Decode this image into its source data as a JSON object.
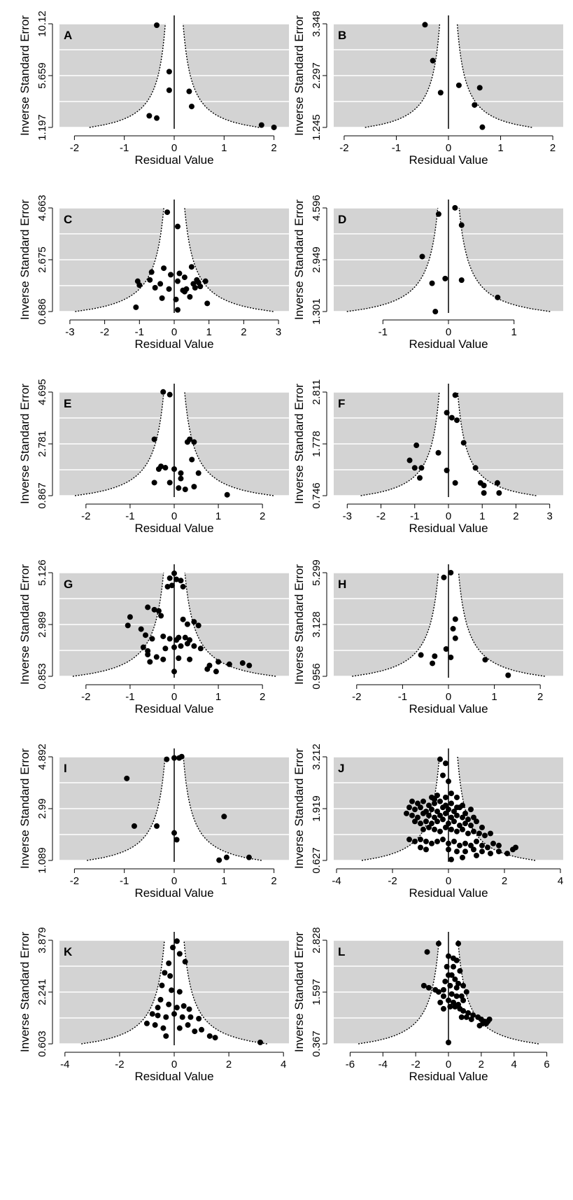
{
  "chart_data": [
    {
      "type": "scatter",
      "panel": "A",
      "xlabel": "Residual Value",
      "ylabel": "Inverse Standard Error",
      "xlim": [
        -2.3,
        2.3
      ],
      "xticks": [
        -2,
        -1,
        0,
        1,
        2
      ],
      "ylim": [
        1.197,
        10.12
      ],
      "yticks": [
        1.197,
        5.659,
        10.12
      ],
      "ytick_labels": [
        "1.197",
        "5.659",
        "10.12"
      ],
      "funnel_halfwidth_at_ymin": 1.7,
      "x": [
        -0.35,
        -0.1,
        -0.1,
        0.3,
        0.35,
        -0.5,
        -0.35,
        1.75,
        2.0
      ],
      "y": [
        10.0,
        6.0,
        4.4,
        4.3,
        3.0,
        2.2,
        2.0,
        1.4,
        1.2
      ]
    },
    {
      "type": "scatter",
      "panel": "B",
      "xlabel": "Residual Value",
      "ylabel": "Inverse Standard Error",
      "xlim": [
        -2.2,
        2.2
      ],
      "xticks": [
        -2,
        -1,
        0,
        1,
        2
      ],
      "ylim": [
        1.245,
        3.348
      ],
      "yticks": [
        1.245,
        2.297,
        3.348
      ],
      "ytick_labels": [
        "1.245",
        "2.297",
        "3.348"
      ],
      "funnel_halfwidth_at_ymin": 1.6,
      "x": [
        -0.45,
        -0.3,
        -0.15,
        0.2,
        0.5,
        0.6,
        0.65
      ],
      "y": [
        3.33,
        2.6,
        1.95,
        2.1,
        1.7,
        2.05,
        1.25
      ]
    },
    {
      "type": "scatter",
      "panel": "C",
      "xlabel": "Residual Value",
      "ylabel": "Inverse Standard Error",
      "xlim": [
        -3.3,
        3.3
      ],
      "xticks": [
        -3,
        -2,
        -1,
        0,
        1,
        2,
        3
      ],
      "ylim": [
        0.686,
        4.663
      ],
      "yticks": [
        0.686,
        2.675,
        4.663
      ],
      "ytick_labels": [
        "0.686",
        "2.675",
        "4.663"
      ],
      "funnel_halfwidth_at_ymin": 2.85,
      "x": [
        -0.2,
        0.1,
        -0.65,
        -0.3,
        0.15,
        0.5,
        0.3,
        -0.1,
        -1.05,
        -1.0,
        -0.7,
        -0.55,
        -0.4,
        -0.15,
        0.1,
        0.35,
        0.55,
        0.65,
        0.75,
        0.9,
        0.25,
        0.45,
        0.6,
        -0.35,
        0.05,
        0.3,
        0.7,
        0.95,
        -1.1,
        0.1
      ],
      "y": [
        4.5,
        3.95,
        2.2,
        2.35,
        2.15,
        2.4,
        2.0,
        2.1,
        1.85,
        1.7,
        1.9,
        1.6,
        1.75,
        1.55,
        1.85,
        1.55,
        1.75,
        1.9,
        1.65,
        1.85,
        1.5,
        1.25,
        1.6,
        1.2,
        1.15,
        1.45,
        1.8,
        1.0,
        0.85,
        0.75
      ]
    },
    {
      "type": "scatter",
      "panel": "D",
      "xlabel": "Residual Value",
      "ylabel": "Inverse Standard Error",
      "xlim": [
        -1.75,
        1.75
      ],
      "xticks": [
        -1,
        0,
        1
      ],
      "ylim": [
        1.301,
        4.596
      ],
      "yticks": [
        1.301,
        2.949,
        4.596
      ],
      "ytick_labels": [
        "1.301",
        "2.949",
        "4.596"
      ],
      "funnel_halfwidth_at_ymin": 1.55,
      "x": [
        -0.15,
        0.1,
        0.2,
        -0.4,
        -0.25,
        -0.05,
        0.2,
        0.75,
        -0.2
      ],
      "y": [
        4.4,
        4.6,
        4.05,
        3.05,
        2.2,
        2.35,
        2.3,
        1.75,
        1.3
      ]
    },
    {
      "type": "scatter",
      "panel": "E",
      "xlabel": "Residual Value",
      "ylabel": "Inverse Standard Error",
      "xlim": [
        -2.6,
        2.6
      ],
      "xticks": [
        -2,
        -1,
        0,
        1,
        2
      ],
      "ylim": [
        0.867,
        4.695
      ],
      "yticks": [
        0.867,
        2.781,
        4.695
      ],
      "ytick_labels": [
        "0.867",
        "2.781",
        "4.695"
      ],
      "funnel_halfwidth_at_ymin": 2.25,
      "x": [
        -0.25,
        -0.1,
        -0.45,
        0.3,
        0.45,
        0.35,
        0.4,
        -0.3,
        -0.2,
        -0.35,
        0.0,
        0.15,
        0.55,
        -0.45,
        -0.1,
        0.1,
        0.25,
        0.45,
        1.2,
        0.15
      ],
      "y": [
        4.7,
        4.6,
        2.95,
        2.85,
        2.85,
        2.95,
        2.2,
        1.95,
        1.9,
        1.85,
        1.85,
        1.7,
        1.7,
        1.35,
        1.35,
        1.15,
        1.1,
        1.2,
        0.9,
        1.5
      ]
    },
    {
      "type": "scatter",
      "panel": "F",
      "xlabel": "Residual Value",
      "ylabel": "Inverse Standard Error",
      "xlim": [
        -3.4,
        3.4
      ],
      "xticks": [
        -3,
        -2,
        -1,
        0,
        1,
        2,
        3
      ],
      "ylim": [
        0.746,
        2.811
      ],
      "yticks": [
        0.746,
        1.778,
        2.811
      ],
      "ytick_labels": [
        "0.746",
        "1.778",
        "2.811"
      ],
      "funnel_halfwidth_at_ymin": 2.6,
      "x": [
        0.2,
        -0.05,
        0.1,
        0.25,
        -0.95,
        0.45,
        -0.3,
        -1.15,
        -1.0,
        -0.8,
        -0.05,
        0.8,
        1.45,
        -0.85,
        0.2,
        0.95,
        1.05,
        1.5,
        1.05
      ],
      "y": [
        2.75,
        2.4,
        2.3,
        2.25,
        1.75,
        1.8,
        1.6,
        1.45,
        1.3,
        1.3,
        1.25,
        1.3,
        1.0,
        1.1,
        1.0,
        1.0,
        0.95,
        0.8,
        0.8
      ]
    },
    {
      "type": "scatter",
      "panel": "G",
      "xlabel": "Residual Value",
      "ylabel": "Inverse Standard Error",
      "xlim": [
        -2.6,
        2.6
      ],
      "xticks": [
        -2,
        -1,
        0,
        1,
        2
      ],
      "ylim": [
        0.853,
        5.126
      ],
      "yticks": [
        0.853,
        2.989,
        5.126
      ],
      "ytick_labels": [
        "0.853",
        "2.989",
        "5.126"
      ],
      "funnel_halfwidth_at_ymin": 2.3,
      "x": [
        0.0,
        -0.1,
        0.05,
        0.15,
        -0.05,
        0.2,
        -0.15,
        -0.6,
        -0.45,
        -0.35,
        -1.0,
        -1.05,
        -0.75,
        -0.3,
        0.45,
        0.55,
        0.2,
        0.3,
        -0.65,
        -0.5,
        -0.25,
        -0.1,
        0.05,
        0.1,
        0.25,
        0.35,
        -0.7,
        -0.6,
        -0.2,
        0.0,
        0.15,
        0.45,
        0.6,
        -0.4,
        -0.25,
        0.1,
        0.35,
        0.8,
        1.0,
        1.25,
        1.55,
        1.7,
        -0.6,
        -0.55,
        0.75,
        0.95,
        0.0,
        0.3
      ],
      "y": [
        5.1,
        4.9,
        4.85,
        4.8,
        4.6,
        4.55,
        4.55,
        3.7,
        3.6,
        3.55,
        3.3,
        2.95,
        2.8,
        3.35,
        3.1,
        2.95,
        3.2,
        3.0,
        2.55,
        2.4,
        2.5,
        2.4,
        2.35,
        2.45,
        2.45,
        2.35,
        2.05,
        1.9,
        2.0,
        2.05,
        2.1,
        2.1,
        2.0,
        1.65,
        1.55,
        1.6,
        1.55,
        1.3,
        1.45,
        1.35,
        1.4,
        1.3,
        1.75,
        1.45,
        1.15,
        1.05,
        1.05,
        2.2
      ]
    },
    {
      "type": "scatter",
      "panel": "H",
      "xlabel": "Residual Value",
      "ylabel": "Inverse Standard Error",
      "xlim": [
        -2.5,
        2.5
      ],
      "xticks": [
        -2,
        -1,
        0,
        1,
        2
      ],
      "ylim": [
        0.956,
        5.299
      ],
      "yticks": [
        0.956,
        3.128,
        5.299
      ],
      "ytick_labels": [
        "0.956",
        "3.128",
        "5.299"
      ],
      "funnel_halfwidth_at_ymin": 2.1,
      "x": [
        0.05,
        -0.1,
        0.15,
        0.1,
        0.15,
        -0.05,
        -0.6,
        -0.3,
        0.05,
        -0.35,
        0.8,
        1.3
      ],
      "y": [
        5.3,
        5.1,
        3.35,
        2.95,
        2.55,
        2.1,
        1.85,
        1.8,
        1.75,
        1.5,
        1.65,
        1.0
      ]
    },
    {
      "type": "scatter",
      "panel": "I",
      "xlabel": "Residual Value",
      "ylabel": "Inverse Standard Error",
      "xlim": [
        -2.3,
        2.3
      ],
      "xticks": [
        -2,
        -1,
        0,
        1,
        2
      ],
      "ylim": [
        1.089,
        4.892
      ],
      "yticks": [
        1.089,
        2.99,
        4.892
      ],
      "ytick_labels": [
        "1.089",
        "2.99",
        "4.892"
      ],
      "funnel_halfwidth_at_ymin": 1.75,
      "x": [
        -0.15,
        0.0,
        0.1,
        0.15,
        -0.95,
        1.0,
        -0.8,
        -0.35,
        0.0,
        0.05,
        0.9,
        1.05,
        1.5
      ],
      "y": [
        4.8,
        4.85,
        4.85,
        4.9,
        4.1,
        2.7,
        2.35,
        2.35,
        2.1,
        1.85,
        1.1,
        1.2,
        1.2
      ]
    },
    {
      "type": "scatter",
      "panel": "J",
      "xlabel": "Residual Value",
      "ylabel": "Inverse Standard Error",
      "xlim": [
        -4.1,
        4.1
      ],
      "xticks": [
        -4,
        -2,
        0,
        2,
        4
      ],
      "ylim": [
        0.627,
        3.212
      ],
      "yticks": [
        0.627,
        1.919,
        3.212
      ],
      "ytick_labels": [
        "0.627",
        "1.919",
        "3.212"
      ],
      "funnel_halfwidth_at_ymin": 3.1,
      "x": [
        -0.3,
        -0.1,
        -0.2,
        0.0,
        -0.6,
        -0.4,
        -0.5,
        -0.1,
        0.1,
        0.3,
        -1.3,
        -1.1,
        -0.9,
        -0.7,
        -0.5,
        -0.3,
        -0.1,
        0.1,
        0.3,
        0.5,
        -1.4,
        -1.2,
        -1.0,
        -0.8,
        -0.6,
        -0.4,
        -0.2,
        0.0,
        0.2,
        0.4,
        0.6,
        0.8,
        -1.5,
        -1.3,
        -1.1,
        -0.9,
        -0.7,
        -0.5,
        -0.3,
        -0.1,
        0.1,
        0.3,
        0.5,
        0.7,
        0.9,
        -1.2,
        -1.0,
        -0.8,
        -0.6,
        -0.4,
        -0.2,
        0.0,
        0.2,
        0.4,
        0.6,
        0.8,
        1.0,
        1.2,
        -0.9,
        -0.7,
        -0.5,
        -0.3,
        -0.1,
        0.1,
        0.3,
        0.5,
        0.7,
        0.9,
        1.1,
        1.3,
        1.5,
        -1.4,
        -1.2,
        -1.0,
        -0.8,
        -0.6,
        -0.4,
        -0.2,
        0.0,
        0.2,
        0.4,
        0.6,
        0.8,
        1.0,
        1.2,
        1.4,
        1.6,
        1.8,
        -1.0,
        -0.8,
        0.0,
        0.3,
        0.6,
        0.9,
        1.2,
        1.5,
        1.8,
        2.1,
        2.3,
        2.4,
        0.1,
        0.5,
        1.0
      ],
      "y": [
        3.15,
        3.05,
        2.75,
        2.6,
        2.2,
        2.25,
        2.15,
        2.2,
        2.3,
        2.2,
        2.1,
        2.05,
        2.1,
        2.0,
        2.05,
        2.1,
        2.0,
        2.05,
        1.95,
        2.0,
        1.95,
        1.9,
        1.95,
        1.85,
        1.9,
        1.85,
        1.95,
        1.9,
        1.85,
        1.95,
        1.8,
        1.9,
        1.8,
        1.75,
        1.7,
        1.8,
        1.75,
        1.7,
        1.75,
        1.8,
        1.7,
        1.75,
        1.7,
        1.65,
        1.7,
        1.6,
        1.55,
        1.6,
        1.55,
        1.6,
        1.65,
        1.55,
        1.6,
        1.5,
        1.55,
        1.5,
        1.6,
        1.45,
        1.4,
        1.45,
        1.4,
        1.35,
        1.45,
        1.4,
        1.35,
        1.4,
        1.3,
        1.35,
        1.3,
        1.25,
        1.3,
        1.15,
        1.1,
        1.15,
        1.1,
        1.05,
        1.1,
        1.15,
        1.05,
        1.1,
        1.0,
        1.05,
        1.0,
        1.1,
        1.0,
        0.95,
        1.05,
        1.0,
        0.95,
        0.9,
        0.9,
        0.85,
        0.85,
        0.9,
        0.85,
        0.8,
        0.85,
        0.8,
        0.9,
        0.95,
        0.65,
        0.7,
        0.75
      ]
    },
    {
      "type": "scatter",
      "panel": "K",
      "xlabel": "Residual Value",
      "ylabel": "Inverse Standard Error",
      "xlim": [
        -4.2,
        4.2
      ],
      "xticks": [
        -4,
        -2,
        0,
        2,
        4
      ],
      "ylim": [
        0.603,
        3.879
      ],
      "yticks": [
        0.603,
        2.241,
        3.879
      ],
      "ytick_labels": [
        "0.603",
        "2.241",
        "3.879"
      ],
      "funnel_halfwidth_at_ymin": 3.4,
      "x": [
        0.1,
        -0.05,
        0.2,
        0.4,
        -0.2,
        -0.35,
        -0.15,
        -0.45,
        -0.1,
        0.2,
        -0.5,
        -0.6,
        -0.2,
        0.1,
        0.35,
        0.55,
        -0.8,
        -0.6,
        -0.3,
        0.0,
        0.3,
        0.6,
        0.9,
        -1.0,
        -0.7,
        -0.4,
        0.2,
        0.5,
        0.75,
        1.0,
        1.3,
        1.5,
        -0.3,
        3.15
      ],
      "y": [
        3.85,
        3.65,
        3.45,
        3.2,
        3.15,
        2.85,
        2.75,
        2.45,
        2.3,
        2.25,
        2.0,
        1.75,
        1.85,
        1.75,
        1.8,
        1.7,
        1.55,
        1.5,
        1.45,
        1.55,
        1.45,
        1.45,
        1.4,
        1.25,
        1.2,
        1.1,
        1.1,
        1.2,
        1.0,
        1.05,
        0.85,
        0.8,
        0.85,
        0.65
      ]
    },
    {
      "type": "scatter",
      "panel": "L",
      "xlabel": "Residual Value",
      "ylabel": "Inverse Standard Error",
      "xlim": [
        -7.0,
        7.0
      ],
      "xticks": [
        -6,
        -4,
        -2,
        0,
        2,
        4,
        6
      ],
      "ylim": [
        0.367,
        2.828
      ],
      "yticks": [
        0.367,
        1.597,
        2.828
      ],
      "ytick_labels": [
        "0.367",
        "1.597",
        "2.828"
      ],
      "funnel_halfwidth_at_ymin": 5.5,
      "x": [
        -0.6,
        -1.3,
        0.6,
        0.0,
        0.3,
        0.5,
        -0.1,
        0.3,
        0.7,
        0.0,
        0.2,
        0.4,
        -0.2,
        0.6,
        0.1,
        0.5,
        -0.3,
        0.9,
        -1.5,
        -1.2,
        -0.8,
        -0.6,
        -0.3,
        0.2,
        0.5,
        0.8,
        1.1,
        -0.5,
        0.0,
        0.3,
        0.6,
        0.9,
        -0.3,
        0.1,
        0.4,
        0.7,
        0.9,
        1.2,
        1.5,
        0.8,
        1.1,
        1.4,
        1.8,
        2.0,
        2.2,
        2.4,
        2.5,
        2.1,
        1.9,
        2.3,
        0.0
      ],
      "y": [
        2.75,
        2.55,
        2.75,
        2.45,
        2.4,
        2.35,
        2.2,
        2.2,
        2.1,
        2.0,
        2.0,
        1.9,
        1.85,
        1.8,
        1.75,
        1.7,
        1.65,
        1.75,
        1.75,
        1.7,
        1.65,
        1.6,
        1.5,
        1.55,
        1.5,
        1.5,
        1.6,
        1.35,
        1.4,
        1.35,
        1.3,
        1.4,
        1.2,
        1.25,
        1.25,
        1.2,
        1.15,
        1.1,
        1.05,
        1.0,
        1.0,
        0.95,
        1.0,
        0.95,
        0.9,
        0.9,
        0.95,
        0.85,
        0.8,
        0.85,
        0.4
      ]
    }
  ]
}
